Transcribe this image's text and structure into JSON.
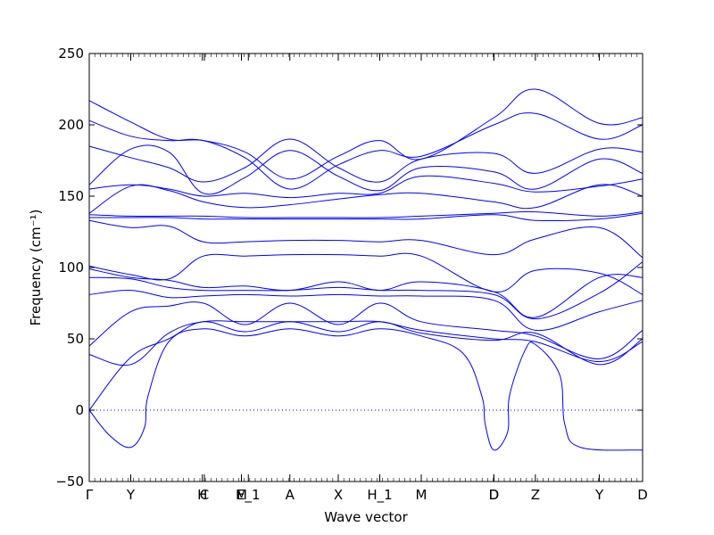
{
  "chart_data": {
    "type": "line",
    "xlabel": "Wave vector",
    "ylabel": "Frequency (cm⁻¹)",
    "ylim": [
      -50,
      250
    ],
    "yticks": [
      -50,
      0,
      50,
      100,
      150,
      200,
      250
    ],
    "xlim": [
      0,
      16
    ],
    "high_symmetry_points": [
      {
        "label": "Γ",
        "x": 0
      },
      {
        "label": "Y",
        "x": 1.2
      },
      {
        "label": "H",
        "x": 3.27
      },
      {
        "label": "C",
        "x": 3.33
      },
      {
        "label": "M",
        "x": 4.4
      },
      {
        "label": "E_1",
        "x": 4.6
      },
      {
        "label": "A",
        "x": 5.8
      },
      {
        "label": "X",
        "x": 7.2
      },
      {
        "label": "H_1",
        "x": 8.4
      },
      {
        "label": "M",
        "x": 9.6
      },
      {
        "label": "D",
        "x": 11.7
      },
      {
        "label": "D",
        "x": 11.7
      },
      {
        "label": "Z",
        "x": 12.9
      },
      {
        "label": "Y",
        "x": 14.75
      },
      {
        "label": "D",
        "x": 16
      }
    ],
    "zero_line": true,
    "series": [
      {
        "values": [
          [
            0,
            217
          ],
          [
            1.2,
            202
          ],
          [
            2.3,
            190
          ],
          [
            3.3,
            189
          ],
          [
            4.5,
            181
          ],
          [
            5.8,
            162
          ],
          [
            7.2,
            178
          ],
          [
            8.4,
            189
          ],
          [
            9.6,
            176
          ],
          [
            11.7,
            205
          ],
          [
            12.9,
            225
          ],
          [
            14.75,
            201
          ],
          [
            16,
            205
          ]
        ]
      },
      {
        "values": [
          [
            0,
            203
          ],
          [
            1.2,
            192
          ],
          [
            2.3,
            189
          ],
          [
            3.3,
            189
          ],
          [
            4.5,
            177
          ],
          [
            5.8,
            155
          ],
          [
            7.2,
            172
          ],
          [
            8.4,
            182
          ],
          [
            9.6,
            178
          ],
          [
            11.7,
            200
          ],
          [
            12.9,
            208
          ],
          [
            14.75,
            190
          ],
          [
            16,
            200
          ]
        ]
      },
      {
        "values": [
          [
            0,
            185
          ],
          [
            1.2,
            177
          ],
          [
            2.3,
            170
          ],
          [
            3.3,
            160
          ],
          [
            4.5,
            170
          ],
          [
            5.8,
            190
          ],
          [
            7.2,
            170
          ],
          [
            8.4,
            160
          ],
          [
            9.6,
            176
          ],
          [
            11.7,
            180
          ],
          [
            12.9,
            166
          ],
          [
            14.75,
            183
          ],
          [
            16,
            181
          ]
        ]
      },
      {
        "values": [
          [
            0,
            158
          ],
          [
            1.2,
            183
          ],
          [
            2.3,
            181
          ],
          [
            3.3,
            152
          ],
          [
            4.5,
            163
          ],
          [
            5.8,
            182
          ],
          [
            7.2,
            164
          ],
          [
            8.4,
            154
          ],
          [
            9.6,
            170
          ],
          [
            11.7,
            167
          ],
          [
            12.9,
            155
          ],
          [
            14.75,
            176
          ],
          [
            16,
            166
          ]
        ]
      },
      {
        "values": [
          [
            0,
            155
          ],
          [
            1.2,
            158
          ],
          [
            2.3,
            155
          ],
          [
            3.3,
            150
          ],
          [
            4.5,
            152
          ],
          [
            5.8,
            149
          ],
          [
            7.2,
            152
          ],
          [
            8.4,
            152
          ],
          [
            9.6,
            164
          ],
          [
            11.7,
            159
          ],
          [
            12.9,
            153
          ],
          [
            14.75,
            157
          ],
          [
            16,
            162
          ]
        ]
      },
      {
        "values": [
          [
            0,
            138
          ],
          [
            1.2,
            157
          ],
          [
            2.3,
            154
          ],
          [
            3.3,
            146
          ],
          [
            4.5,
            142
          ],
          [
            5.8,
            144
          ],
          [
            7.2,
            148
          ],
          [
            8.4,
            151
          ],
          [
            9.6,
            152
          ],
          [
            11.7,
            146
          ],
          [
            12.9,
            142
          ],
          [
            14.75,
            158
          ],
          [
            16,
            150
          ]
        ]
      },
      {
        "values": [
          [
            0,
            137
          ],
          [
            1.2,
            136
          ],
          [
            2.3,
            136
          ],
          [
            3.3,
            136
          ],
          [
            4.5,
            135
          ],
          [
            5.8,
            135
          ],
          [
            7.2,
            135
          ],
          [
            8.4,
            135
          ],
          [
            9.6,
            136
          ],
          [
            11.7,
            138
          ],
          [
            12.9,
            139
          ],
          [
            14.75,
            136
          ],
          [
            16,
            139
          ]
        ]
      },
      {
        "values": [
          [
            0,
            135
          ],
          [
            1.2,
            135
          ],
          [
            2.3,
            135
          ],
          [
            3.3,
            134
          ],
          [
            4.5,
            134
          ],
          [
            5.8,
            134
          ],
          [
            7.2,
            134
          ],
          [
            8.4,
            134
          ],
          [
            9.6,
            134
          ],
          [
            11.7,
            137
          ],
          [
            12.9,
            133
          ],
          [
            14.75,
            134
          ],
          [
            16,
            138
          ]
        ]
      },
      {
        "values": [
          [
            0,
            133
          ],
          [
            1.2,
            128
          ],
          [
            2.3,
            129
          ],
          [
            3.3,
            118
          ],
          [
            4.5,
            118
          ],
          [
            5.8,
            119
          ],
          [
            7.2,
            119
          ],
          [
            8.4,
            118
          ],
          [
            9.6,
            119
          ],
          [
            11.7,
            109
          ],
          [
            12.9,
            120
          ],
          [
            14.75,
            128
          ],
          [
            16,
            107
          ]
        ]
      },
      {
        "values": [
          [
            0,
            101
          ],
          [
            1.2,
            95
          ],
          [
            2.3,
            92
          ],
          [
            3.3,
            108
          ],
          [
            4.5,
            108
          ],
          [
            5.8,
            109
          ],
          [
            7.2,
            109
          ],
          [
            8.4,
            108
          ],
          [
            9.6,
            108
          ],
          [
            11.7,
            83
          ],
          [
            12.9,
            98
          ],
          [
            14.75,
            96
          ],
          [
            16,
            81
          ]
        ]
      },
      {
        "values": [
          [
            0,
            99
          ],
          [
            1.2,
            93
          ],
          [
            2.3,
            91
          ],
          [
            3.3,
            86
          ],
          [
            4.5,
            87
          ],
          [
            5.8,
            84
          ],
          [
            7.2,
            90
          ],
          [
            8.4,
            84
          ],
          [
            9.6,
            90
          ],
          [
            11.7,
            83
          ],
          [
            12.9,
            65
          ],
          [
            14.75,
            93
          ],
          [
            16,
            93
          ]
        ]
      },
      {
        "values": [
          [
            0,
            93
          ],
          [
            1.2,
            92
          ],
          [
            2.3,
            86
          ],
          [
            3.3,
            84
          ],
          [
            4.5,
            84
          ],
          [
            5.8,
            84
          ],
          [
            7.2,
            86
          ],
          [
            8.4,
            84
          ],
          [
            9.6,
            84
          ],
          [
            11.7,
            81
          ],
          [
            12.9,
            64
          ],
          [
            14.75,
            82
          ],
          [
            16,
            104
          ]
        ]
      },
      {
        "values": [
          [
            0,
            81
          ],
          [
            1.2,
            84
          ],
          [
            2.3,
            79
          ],
          [
            3.3,
            80
          ],
          [
            4.5,
            81
          ],
          [
            5.8,
            80
          ],
          [
            7.2,
            81
          ],
          [
            8.4,
            80
          ],
          [
            9.6,
            80
          ],
          [
            11.7,
            77
          ],
          [
            12.9,
            56
          ],
          [
            14.75,
            69
          ],
          [
            16,
            77
          ]
        ]
      },
      {
        "values": [
          [
            0,
            45
          ],
          [
            1.2,
            69
          ],
          [
            2.3,
            73
          ],
          [
            3.3,
            75
          ],
          [
            4.5,
            60
          ],
          [
            5.8,
            75
          ],
          [
            7.2,
            60
          ],
          [
            8.4,
            75
          ],
          [
            9.6,
            62
          ],
          [
            11.7,
            56
          ],
          [
            12.9,
            52
          ],
          [
            14.75,
            36
          ],
          [
            16,
            56
          ]
        ]
      },
      {
        "values": [
          [
            0,
            39
          ],
          [
            1.2,
            32
          ],
          [
            2.3,
            54
          ],
          [
            3.3,
            62
          ],
          [
            4.5,
            62
          ],
          [
            5.8,
            62
          ],
          [
            7.2,
            62
          ],
          [
            8.4,
            62
          ],
          [
            9.6,
            56
          ],
          [
            11.7,
            50
          ],
          [
            12.9,
            48
          ],
          [
            14.75,
            34
          ],
          [
            16,
            48
          ]
        ]
      },
      {
        "values": [
          [
            0,
            0
          ],
          [
            1.2,
            37
          ],
          [
            2.3,
            50
          ],
          [
            3.3,
            62
          ],
          [
            4.5,
            55
          ],
          [
            5.8,
            62
          ],
          [
            7.2,
            55
          ],
          [
            8.4,
            62
          ],
          [
            9.6,
            54
          ],
          [
            11.7,
            49
          ],
          [
            12.9,
            54
          ],
          [
            14.75,
            32
          ],
          [
            16,
            50
          ]
        ]
      },
      {
        "values": [
          [
            0,
            0
          ],
          [
            0.6,
            -18
          ],
          [
            1.2,
            -26
          ],
          [
            1.6,
            -12
          ],
          [
            1.7,
            10
          ],
          [
            2.3,
            48
          ],
          [
            3.3,
            57
          ],
          [
            4.5,
            52
          ],
          [
            5.8,
            57
          ],
          [
            7.2,
            52
          ],
          [
            8.4,
            57
          ],
          [
            9.6,
            52
          ],
          [
            10.8,
            40
          ],
          [
            11.35,
            10
          ],
          [
            11.45,
            -10
          ],
          [
            11.7,
            -28
          ],
          [
            12.1,
            -15
          ],
          [
            12.15,
            10
          ],
          [
            12.6,
            42
          ],
          [
            12.9,
            46
          ],
          [
            13.6,
            25
          ],
          [
            13.75,
            -10
          ],
          [
            14.2,
            -26
          ],
          [
            16,
            -28
          ]
        ]
      }
    ]
  }
}
